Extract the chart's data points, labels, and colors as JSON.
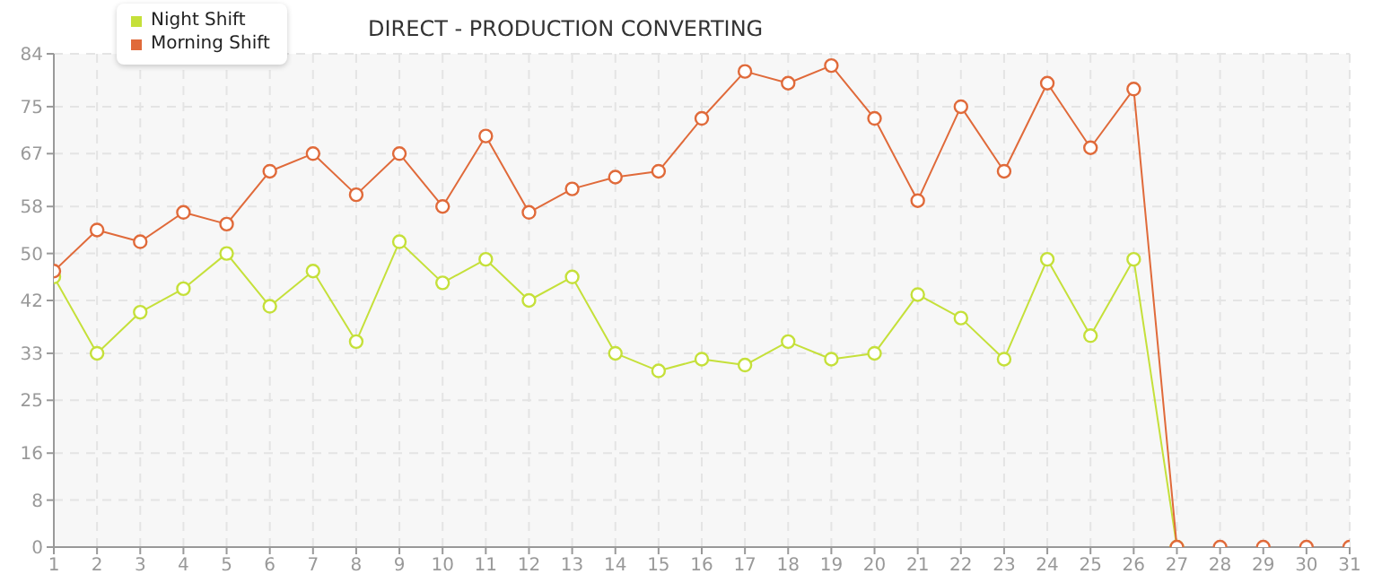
{
  "chart_data": {
    "type": "line",
    "title": "DIRECT - PRODUCTION CONVERTING",
    "x": [
      1,
      2,
      3,
      4,
      5,
      6,
      7,
      8,
      9,
      10,
      11,
      12,
      13,
      14,
      15,
      16,
      17,
      18,
      19,
      20,
      21,
      22,
      23,
      24,
      25,
      26,
      27,
      28,
      29,
      30,
      31
    ],
    "series": [
      {
        "name": "Night Shift",
        "color": "#c5e03a",
        "values": [
          46,
          33,
          40,
          44,
          50,
          41,
          47,
          35,
          52,
          45,
          49,
          42,
          46,
          33,
          30,
          32,
          31,
          35,
          32,
          33,
          43,
          39,
          32,
          49,
          36,
          49,
          0,
          null,
          null,
          null,
          null
        ]
      },
      {
        "name": "Morning Shift",
        "color": "#e06a3a",
        "values": [
          47,
          54,
          52,
          57,
          55,
          64,
          67,
          60,
          67,
          58,
          70,
          57,
          61,
          63,
          64,
          73,
          81,
          79,
          82,
          73,
          59,
          75,
          64,
          79,
          68,
          78,
          0,
          0,
          0,
          0,
          0
        ]
      }
    ],
    "xlim": [
      1,
      31
    ],
    "xticks": [
      1,
      2,
      3,
      4,
      5,
      6,
      7,
      8,
      9,
      10,
      11,
      12,
      13,
      14,
      15,
      16,
      17,
      18,
      19,
      20,
      21,
      22,
      23,
      24,
      25,
      26,
      27,
      28,
      29,
      30,
      31
    ],
    "ylim": [
      0,
      84
    ],
    "yticks": [
      0,
      8,
      16,
      25,
      33,
      42,
      50,
      58,
      67,
      75,
      84
    ],
    "grid": true,
    "legend": "top left",
    "marker": "circle",
    "line_style": "solid"
  }
}
